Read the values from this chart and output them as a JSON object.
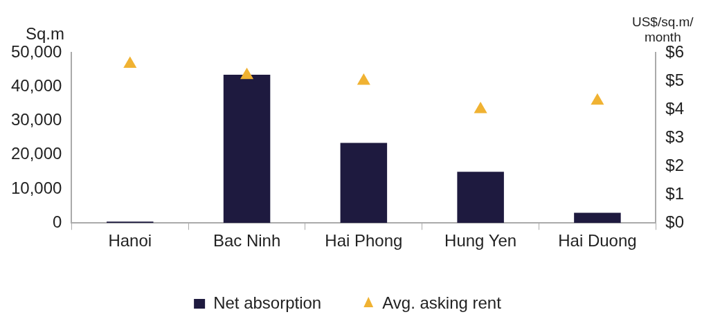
{
  "chart_data": {
    "type": "bar",
    "ylabel": "Sq.m",
    "y2label": "US$/sq.m/ month",
    "categories": [
      "Hanoi",
      "Bac Ninh",
      "Hai Phong",
      "Hung Yen",
      "Hai Duong"
    ],
    "series": [
      {
        "name": "Net absorption",
        "color": "#1e1a3f",
        "values": [
          400,
          43500,
          23500,
          15000,
          3000
        ]
      },
      {
        "name": "Avg. asking rent",
        "type": "scatter",
        "axis": "y2",
        "marker": "triangle",
        "color": "#f0b232",
        "values": [
          5.6,
          5.2,
          5.0,
          4.0,
          4.3
        ]
      }
    ],
    "ylim": [
      0,
      50000
    ],
    "yticks": [
      {
        "value": 0,
        "label": "0"
      },
      {
        "value": 10000,
        "label": "10,000"
      },
      {
        "value": 20000,
        "label": "20,000"
      },
      {
        "value": 30000,
        "label": "30,000"
      },
      {
        "value": 40000,
        "label": "40,000"
      },
      {
        "value": 50000,
        "label": "50,000"
      }
    ],
    "y2lim": [
      0,
      6
    ],
    "y2ticks": [
      {
        "value": 0,
        "label": "$0"
      },
      {
        "value": 1,
        "label": "$1"
      },
      {
        "value": 2,
        "label": "$2"
      },
      {
        "value": 3,
        "label": "$3"
      },
      {
        "value": 4,
        "label": "$4"
      },
      {
        "value": 5,
        "label": "$5"
      },
      {
        "value": 6,
        "label": "$6"
      }
    ],
    "legend": "bottom",
    "grid": false
  }
}
